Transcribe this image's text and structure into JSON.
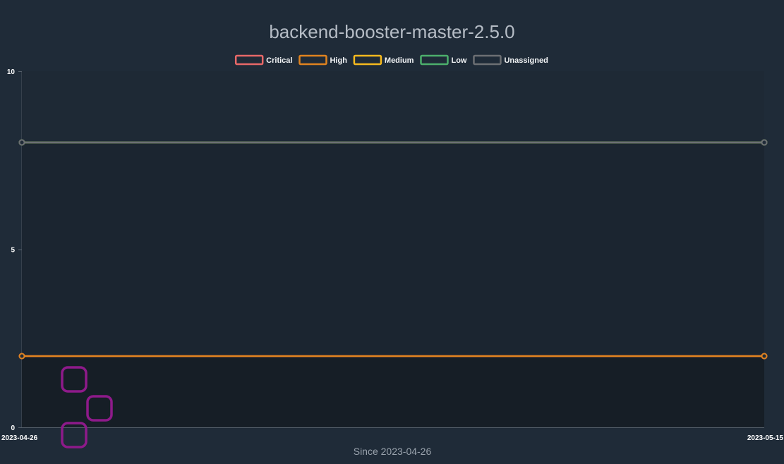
{
  "chart_data": {
    "type": "area",
    "title": "backend-booster-master-2.5.0",
    "xlabel": "Since 2023-04-26",
    "ylabel": "",
    "x": [
      "2023-04-26",
      "2023-05-15"
    ],
    "ylim": [
      0,
      10
    ],
    "yticks": [
      "0",
      "5",
      "10"
    ],
    "grid": true,
    "stacked": true,
    "legend_position": "top-center",
    "series": [
      {
        "name": "Critical",
        "color": "#e86868",
        "values": [
          2,
          2
        ]
      },
      {
        "name": "High",
        "color": "#e0831f",
        "values": [
          0,
          0
        ]
      },
      {
        "name": "Medium",
        "color": "#f5b91e",
        "values": [
          6,
          6
        ]
      },
      {
        "name": "Low",
        "color": "#4caf6c",
        "values": [
          0,
          0
        ]
      },
      {
        "name": "Unassigned",
        "color": "#6c6f73",
        "values": [
          0,
          0
        ]
      }
    ],
    "annotations": {
      "marker_color": "#8e1a8a",
      "marker_shape": "rounded-square"
    }
  }
}
